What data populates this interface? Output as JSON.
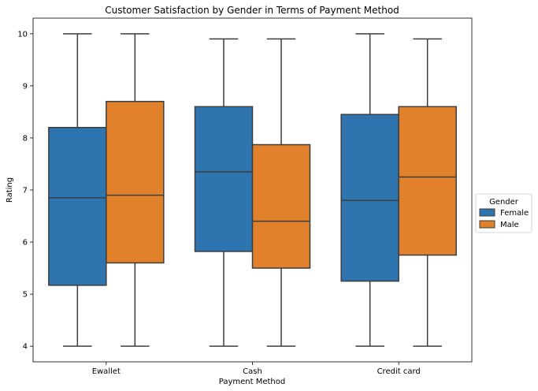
{
  "chart_data": {
    "type": "boxplot",
    "title": "Customer Satisfaction by Gender in Terms of Payment Method",
    "xlabel": "Payment Method",
    "ylabel": "Rating",
    "categories": [
      "Ewallet",
      "Cash",
      "Credit card"
    ],
    "ylim": [
      3.7,
      10.3
    ],
    "yticks": [
      4,
      5,
      6,
      7,
      8,
      9,
      10
    ],
    "grid": false,
    "legend": {
      "title": "Gender",
      "placement": "right"
    },
    "series": [
      {
        "name": "Female",
        "color": "#2e75b0",
        "boxes": [
          {
            "min": 4.0,
            "q1": 5.17,
            "median": 6.85,
            "q3": 8.2,
            "max": 10.0
          },
          {
            "min": 4.0,
            "q1": 5.82,
            "median": 7.35,
            "q3": 8.6,
            "max": 9.9
          },
          {
            "min": 4.0,
            "q1": 5.25,
            "median": 6.8,
            "q3": 8.45,
            "max": 10.0
          }
        ]
      },
      {
        "name": "Male",
        "color": "#e1812c",
        "boxes": [
          {
            "min": 4.0,
            "q1": 5.6,
            "median": 6.9,
            "q3": 8.7,
            "max": 10.0
          },
          {
            "min": 4.0,
            "q1": 5.5,
            "median": 6.4,
            "q3": 7.87,
            "max": 9.9
          },
          {
            "min": 4.0,
            "q1": 5.75,
            "median": 7.25,
            "q3": 8.6,
            "max": 9.9
          }
        ]
      }
    ]
  }
}
